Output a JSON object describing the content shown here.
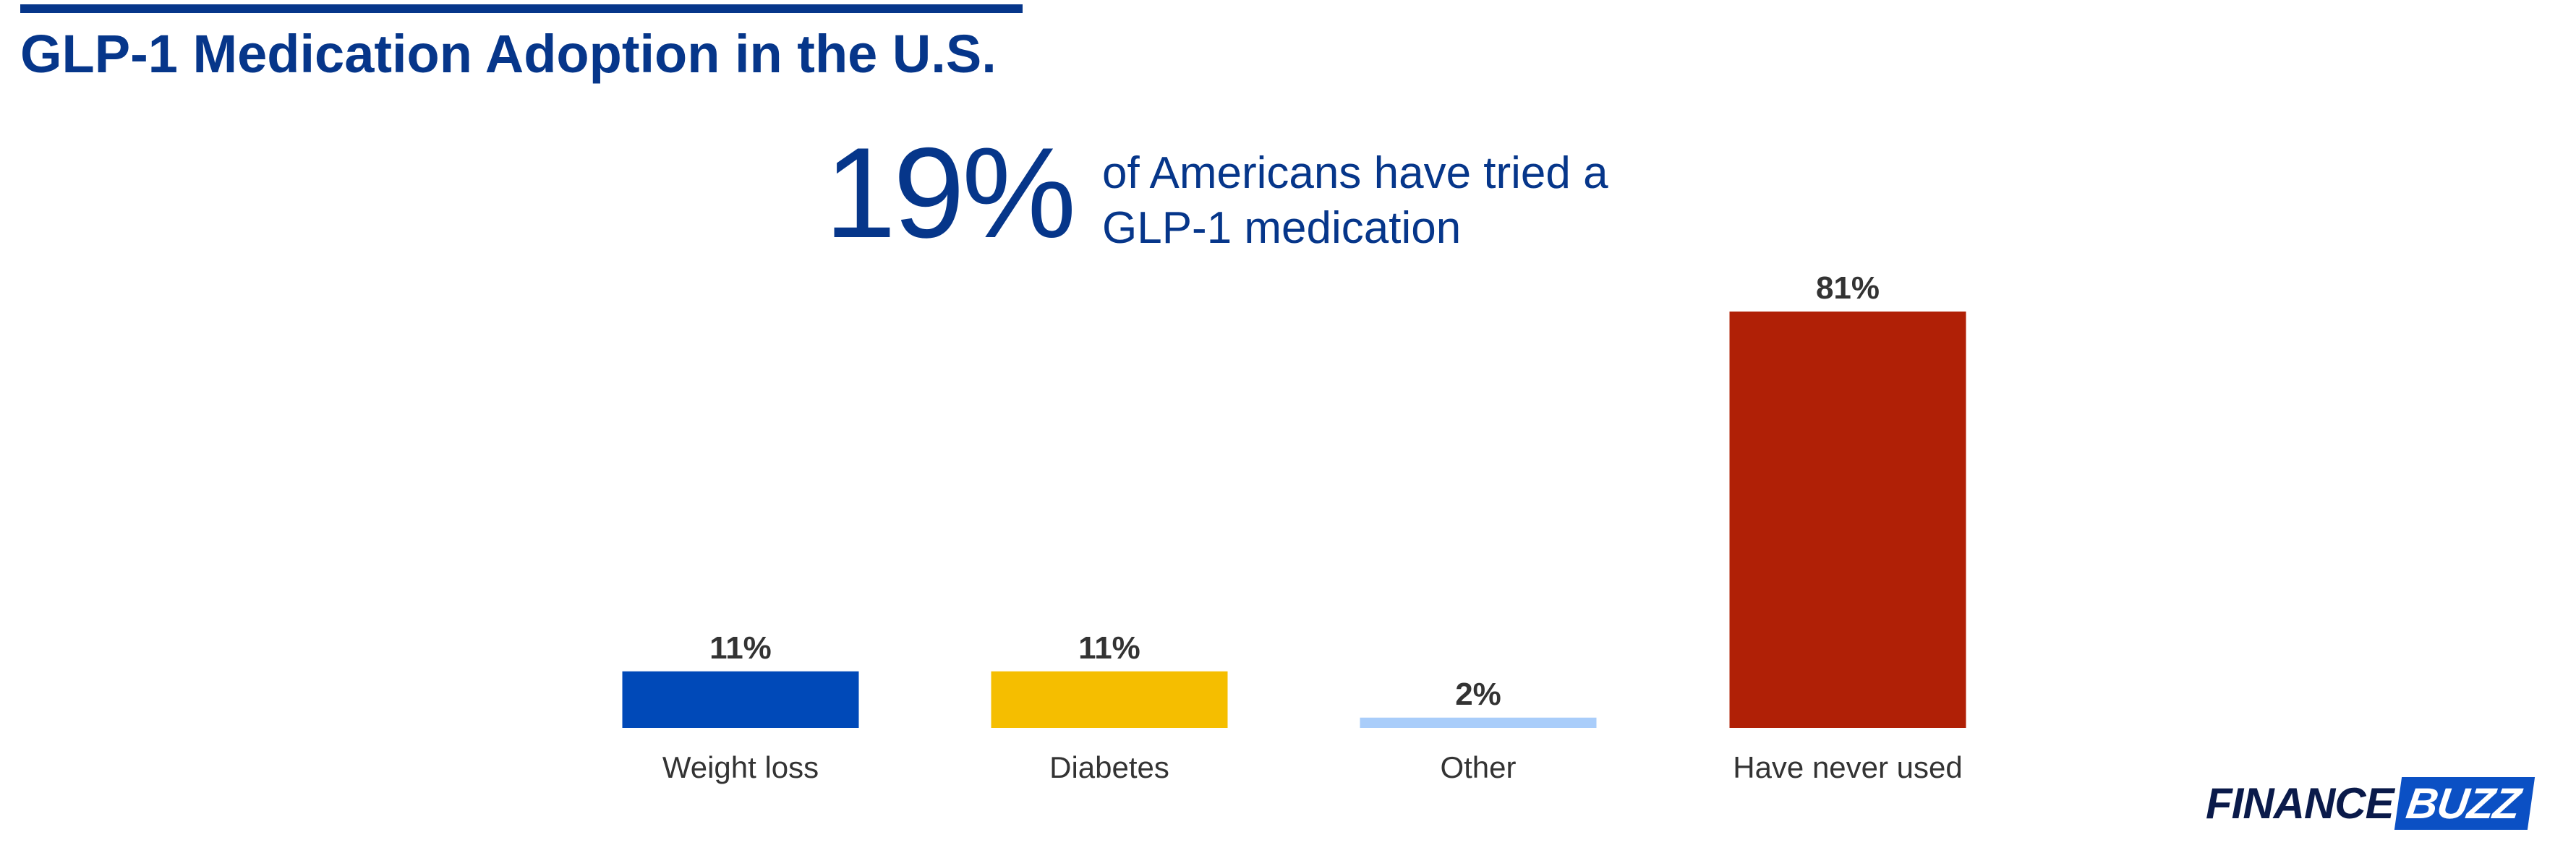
{
  "title": "GLP-1 Medication Adoption in the U.S.",
  "headline": {
    "stat": "19%",
    "text_line1": "of Americans have tried a",
    "text_line2": "GLP-1 medication"
  },
  "logo": {
    "part1": "FINANCE",
    "part2": "BUZZ"
  },
  "colors": {
    "title": "#06368a",
    "weight_loss": "#0049b8",
    "diabetes": "#f5be00",
    "other": "#a9cdfa",
    "never_used": "#b02006"
  },
  "chart_data": {
    "type": "bar",
    "title": "",
    "xlabel": "",
    "ylabel": "",
    "categories": [
      "Weight loss",
      "Diabetes",
      "Other",
      "Have never used"
    ],
    "values": [
      11,
      11,
      2,
      81
    ],
    "value_labels": [
      "11%",
      "11%",
      "2%",
      "81%"
    ],
    "ylim": [
      0,
      81
    ],
    "grid": false,
    "legend": "none"
  }
}
